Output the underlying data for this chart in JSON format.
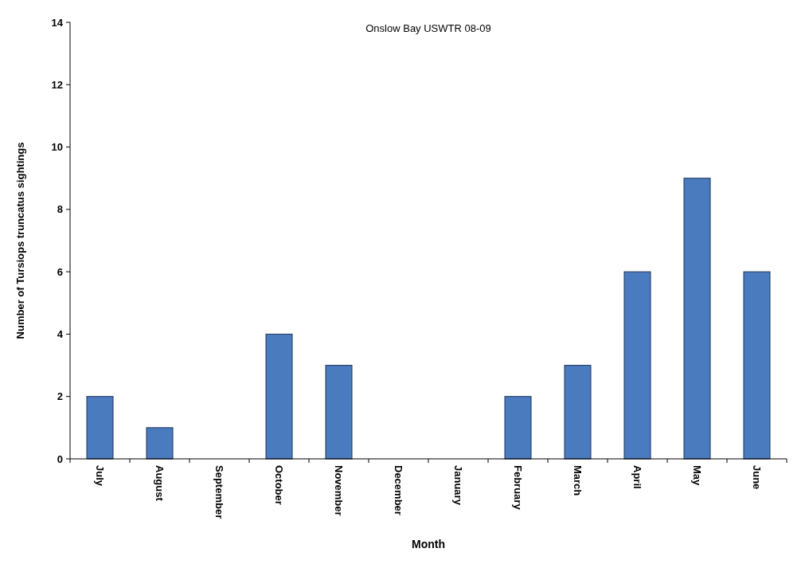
{
  "chart_data": {
    "type": "bar",
    "title": "Onslow Bay USWTR 08-09",
    "xlabel": "Month",
    "ylabel": "Number of Tursiops truncatus sightings",
    "categories": [
      "July",
      "August",
      "September",
      "October",
      "November",
      "December",
      "January",
      "February",
      "March",
      "April",
      "May",
      "June"
    ],
    "values": [
      2,
      1,
      0,
      4,
      3,
      0,
      0,
      2,
      3,
      6,
      9,
      6
    ],
    "color": "#4a7bbf",
    "ylim": [
      0,
      14
    ],
    "yticks": [
      0,
      2,
      4,
      6,
      8,
      10,
      12,
      14
    ],
    "grid": false
  }
}
